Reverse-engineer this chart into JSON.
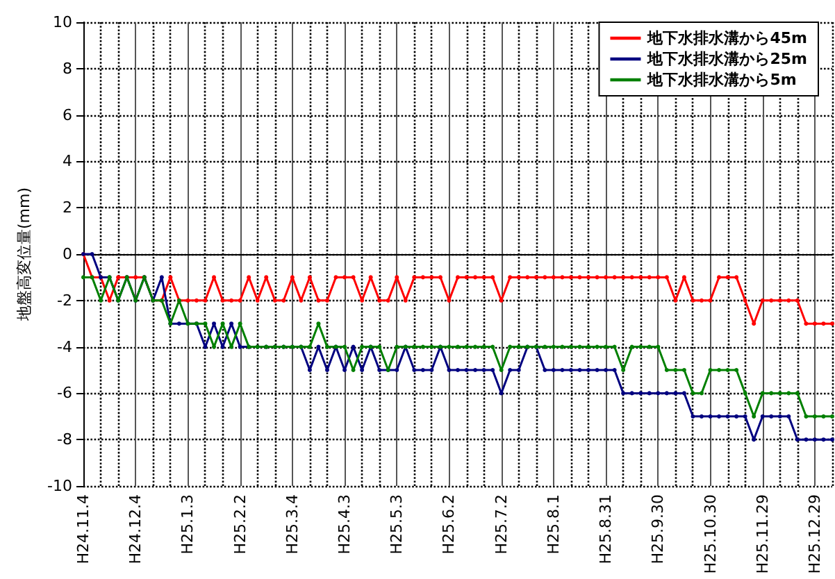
{
  "chart_data": {
    "type": "line",
    "ylabel": "地盤高変位量(mm)",
    "categories": [
      "H24.11.4",
      null,
      null,
      null,
      null,
      null,
      "H24.12.4",
      null,
      null,
      null,
      null,
      null,
      "H25.1.3",
      null,
      null,
      null,
      null,
      null,
      "H25.2.2",
      null,
      null,
      null,
      null,
      null,
      "H25.3.4",
      null,
      null,
      null,
      null,
      null,
      "H25.4.3",
      null,
      null,
      null,
      null,
      null,
      "H25.5.3",
      null,
      null,
      null,
      null,
      null,
      "H25.6.2",
      null,
      null,
      null,
      null,
      null,
      "H25.7.2",
      null,
      null,
      null,
      null,
      null,
      "H25.8.1",
      null,
      null,
      null,
      null,
      null,
      "H25.8.31",
      null,
      null,
      null,
      null,
      null,
      "H25.9.30",
      null,
      null,
      null,
      null,
      null,
      "H25.10.30",
      null,
      null,
      null,
      null,
      null,
      "H25.11.29",
      null,
      null,
      null,
      null,
      null,
      "H25.12.29",
      null,
      null
    ],
    "series": [
      {
        "name": "地下水排水溝から45m",
        "color": "#ff0000",
        "values": [
          0,
          -1,
          -1,
          -2,
          -1,
          -1,
          -1,
          -1,
          -2,
          -2,
          -1,
          -2,
          -2,
          -2,
          -2,
          -1,
          -2,
          -2,
          -2,
          -1,
          -2,
          -1,
          -2,
          -2,
          -1,
          -2,
          -1,
          -2,
          -2,
          -1,
          -1,
          -1,
          -2,
          -1,
          -2,
          -2,
          -1,
          -2,
          -1,
          -1,
          -1,
          -1,
          -2,
          -1,
          -1,
          -1,
          -1,
          -1,
          -2,
          -1,
          -1,
          -1,
          -1,
          -1,
          -1,
          -1,
          -1,
          -1,
          -1,
          -1,
          -1,
          -1,
          -1,
          -1,
          -1,
          -1,
          -1,
          -1,
          -2,
          -1,
          -2,
          -2,
          -2,
          -1,
          -1,
          -1,
          -2,
          -3,
          -2,
          -2,
          -2,
          -2,
          -2,
          -3,
          -3,
          -3,
          -3
        ]
      },
      {
        "name": "地下水排水溝から25m",
        "color": "#000080",
        "values": [
          0,
          0,
          -1,
          -1,
          -2,
          -1,
          -2,
          -1,
          -2,
          -1,
          -3,
          -3,
          -3,
          -3,
          -4,
          -3,
          -4,
          -3,
          -4,
          -4,
          -4,
          -4,
          -4,
          -4,
          -4,
          -4,
          -5,
          -4,
          -5,
          -4,
          -5,
          -4,
          -5,
          -4,
          -5,
          -5,
          -5,
          -4,
          -5,
          -5,
          -5,
          -4,
          -5,
          -5,
          -5,
          -5,
          -5,
          -5,
          -6,
          -5,
          -5,
          -4,
          -4,
          -5,
          -5,
          -5,
          -5,
          -5,
          -5,
          -5,
          -5,
          -5,
          -6,
          -6,
          -6,
          -6,
          -6,
          -6,
          -6,
          -6,
          -7,
          -7,
          -7,
          -7,
          -7,
          -7,
          -7,
          -8,
          -7,
          -7,
          -7,
          -7,
          -8,
          -8,
          -8,
          -8,
          -8
        ]
      },
      {
        "name": "地下水排水溝から5m",
        "color": "#008000",
        "values": [
          -1,
          -1,
          -2,
          -1,
          -2,
          -1,
          -2,
          -1,
          -2,
          -2,
          -3,
          -2,
          -3,
          -3,
          -3,
          -4,
          -3,
          -4,
          -3,
          -4,
          -4,
          -4,
          -4,
          -4,
          -4,
          -4,
          -4,
          -3,
          -4,
          -4,
          -4,
          -5,
          -4,
          -4,
          -4,
          -5,
          -4,
          -4,
          -4,
          -4,
          -4,
          -4,
          -4,
          -4,
          -4,
          -4,
          -4,
          -4,
          -5,
          -4,
          -4,
          -4,
          -4,
          -4,
          -4,
          -4,
          -4,
          -4,
          -4,
          -4,
          -4,
          -4,
          -5,
          -4,
          -4,
          -4,
          -4,
          -5,
          -5,
          -5,
          -6,
          -6,
          -5,
          -5,
          -5,
          -5,
          -6,
          -7,
          -6,
          -6,
          -6,
          -6,
          -6,
          -7,
          -7,
          -7,
          -7
        ]
      }
    ],
    "ylim": [
      -10,
      10
    ],
    "yticks": [
      -10,
      -8,
      -6,
      -4,
      -2,
      0,
      2,
      4,
      6,
      8,
      10
    ],
    "grid": true,
    "legend": "top right",
    "marker": "circle",
    "line_style": "solid"
  }
}
